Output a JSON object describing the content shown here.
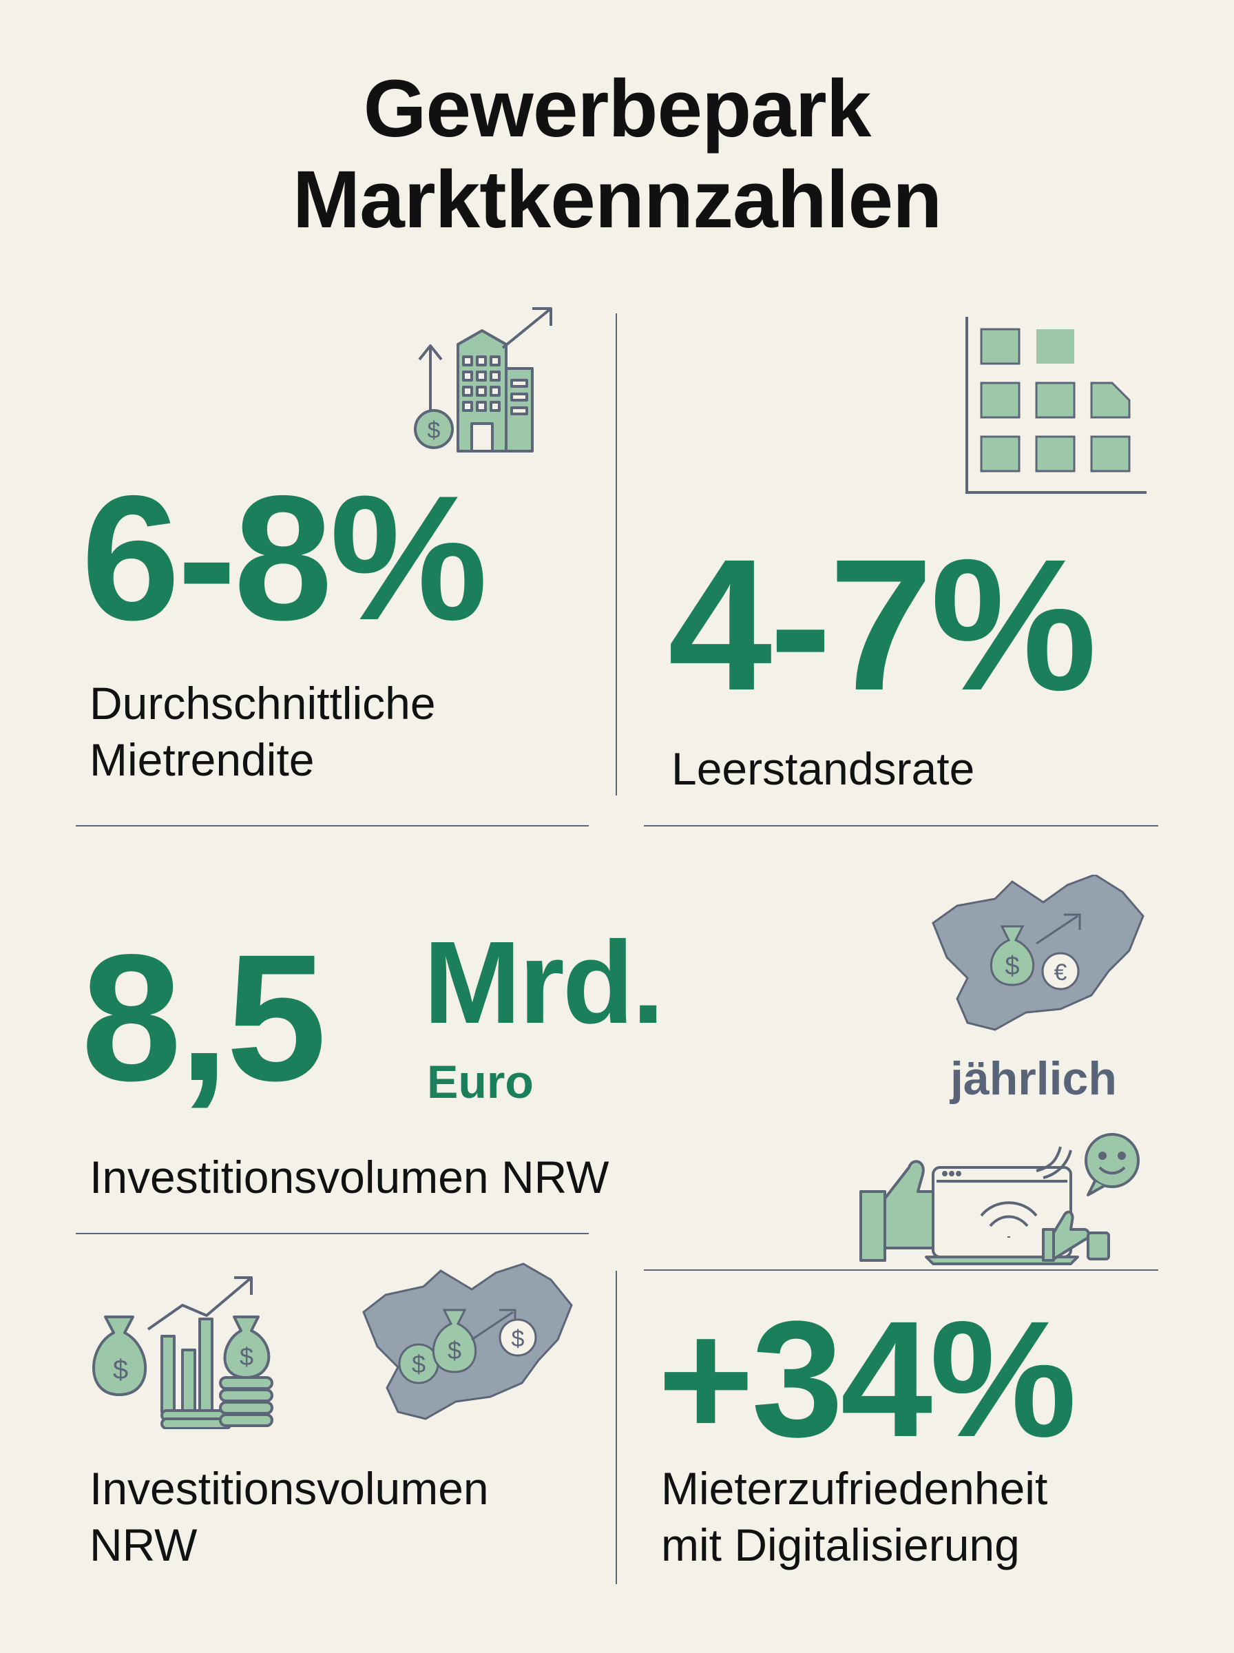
{
  "title": {
    "line1": "Gewerbepark",
    "line2": "Marktkennzahlen"
  },
  "stats": {
    "rent_yield": {
      "value": "6-8%",
      "label_line1": "Durchschnittliche",
      "label_line2": "Mietrendite",
      "icon": "building-growth-icon"
    },
    "vacancy": {
      "value": "4-7%",
      "label": "Leerstandsrate",
      "icon": "vacancy-grid-icon"
    },
    "investment": {
      "value": "8,5",
      "unit": "Mrd.",
      "currency": "Euro",
      "note": "jährlich",
      "label": "Investitionsvolumen  NRW",
      "icon": "nrw-map-money-icon"
    },
    "investment_2": {
      "label_line1": "Investitionsvolumen",
      "label_line2": "NRW",
      "icons": [
        "money-bags-chart-icon",
        "nrw-map-coins-icon"
      ]
    },
    "satisfaction": {
      "value": "+34%",
      "label_line1": "Mieterzufriedenheit",
      "label_line2": "mit Digitalisierung",
      "icon": "digital-satisfaction-icon"
    }
  },
  "colors": {
    "accent": "#1a7f5a",
    "icon_fill": "#9cc7a8",
    "icon_stroke": "#5d6678",
    "map": "#96a1ae",
    "background": "#f4f1e8"
  }
}
